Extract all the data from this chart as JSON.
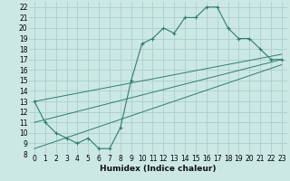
{
  "xlabel": "Humidex (Indice chaleur)",
  "bg_color": "#cce8e4",
  "grid_color": "#aad0cc",
  "line_color": "#2e7d6e",
  "xlim": [
    -0.5,
    23.5
  ],
  "ylim": [
    8,
    22.5
  ],
  "xticks": [
    0,
    1,
    2,
    3,
    4,
    5,
    6,
    7,
    8,
    9,
    10,
    11,
    12,
    13,
    14,
    15,
    16,
    17,
    18,
    19,
    20,
    21,
    22,
    23
  ],
  "yticks": [
    8,
    9,
    10,
    11,
    12,
    13,
    14,
    15,
    16,
    17,
    18,
    19,
    20,
    21,
    22
  ],
  "series": [
    {
      "x": [
        0,
        1,
        2,
        3,
        4,
        5,
        6,
        7,
        8,
        9,
        10,
        11,
        12,
        13,
        14,
        15,
        16,
        17,
        18,
        19,
        20,
        21,
        22,
        23
      ],
      "y": [
        13,
        11,
        10,
        9.5,
        9,
        9.5,
        8.5,
        8.5,
        10.5,
        15,
        18.5,
        19,
        20,
        19.5,
        21,
        21,
        22,
        22,
        20,
        19,
        19,
        18,
        17,
        17
      ],
      "marker": true
    },
    {
      "x": [
        0,
        23
      ],
      "y": [
        13,
        17.5
      ],
      "marker": false
    },
    {
      "x": [
        0,
        23
      ],
      "y": [
        11,
        17
      ],
      "marker": false
    },
    {
      "x": [
        0,
        23
      ],
      "y": [
        8.5,
        16.5
      ],
      "marker": false
    }
  ],
  "tick_fontsize": 5.5,
  "xlabel_fontsize": 6.5
}
